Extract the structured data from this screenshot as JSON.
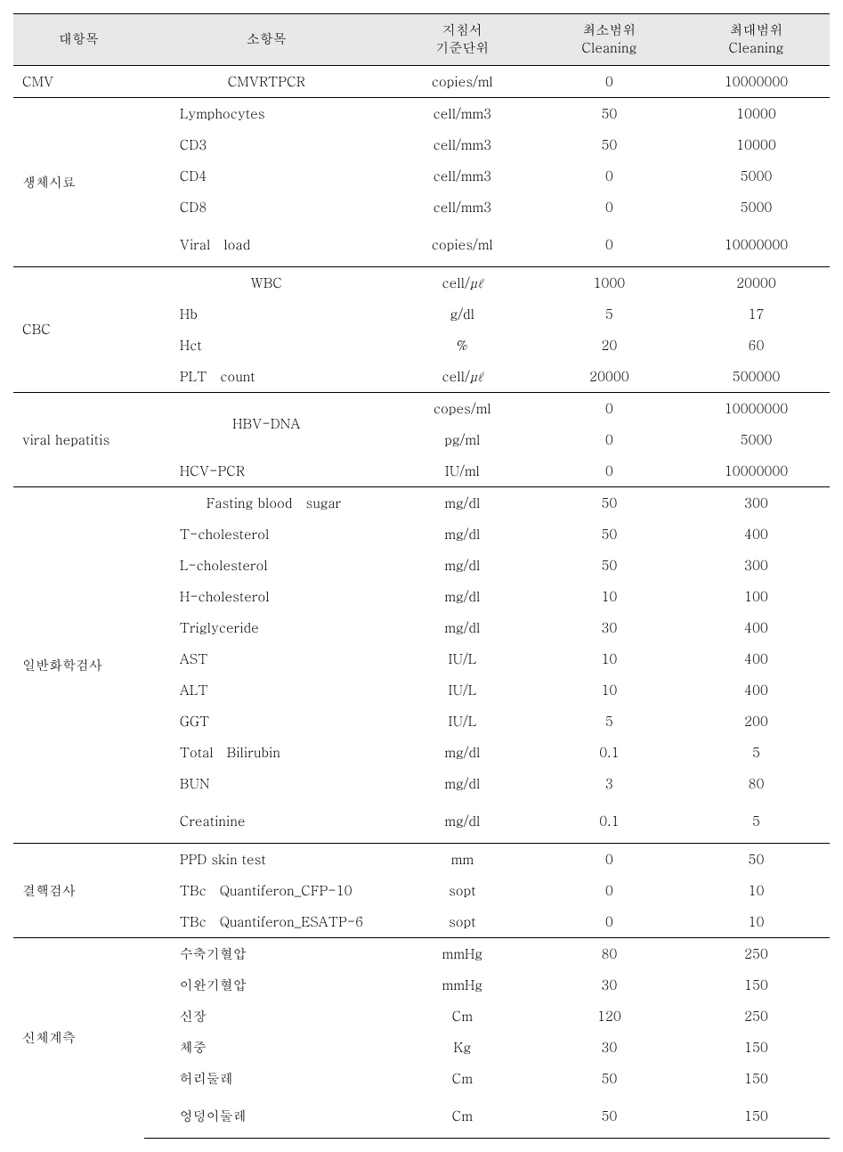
{
  "headers": {
    "h1": "대항목",
    "h2": "소항목",
    "h3a": "지침서",
    "h3b": "기준단위",
    "h4a": "최소범위",
    "h4b": "Cleaning",
    "h5a": "최대범위",
    "h5b": "Cleaning"
  },
  "unit_cell_mm3": "cell/mm3",
  "unit_cell_ul_pre": "cell/",
  "unit_cell_ul_mid": "μℓ",
  "groups": [
    {
      "major": "CMV",
      "rows": [
        {
          "sub": "CMVRTPCR",
          "sub_center": true,
          "unit": "copies/ml",
          "min": "0",
          "max": "10000000"
        }
      ]
    },
    {
      "major": "생체시료",
      "rows": [
        {
          "sub": "Lymphocytes",
          "unit": "cell/mm3",
          "min": "50",
          "max": "10000"
        },
        {
          "sub": "CD3",
          "unit": "cell/mm3",
          "min": "50",
          "max": "10000"
        },
        {
          "sub": "CD4",
          "unit": "cell/mm3",
          "min": "0",
          "max": "5000"
        },
        {
          "sub": "CD8",
          "unit": "cell/mm3",
          "min": "0",
          "max": "5000"
        },
        {
          "sub": "Viral   load",
          "unit": "copies/ml",
          "min": "0",
          "max": "10000000",
          "pad_extra": true
        }
      ]
    },
    {
      "major": "CBC",
      "rows": [
        {
          "sub": "WBC",
          "sub_center": true,
          "unit_ul": true,
          "min": "1000",
          "max": "20000"
        },
        {
          "sub": "Hb",
          "unit": "g/dl",
          "min": "5",
          "max": "17"
        },
        {
          "sub": "Hct",
          "unit": "%",
          "min": "20",
          "max": "60"
        },
        {
          "sub": "PLT   count",
          "unit_ul": true,
          "min": "20000",
          "max": "500000"
        }
      ]
    },
    {
      "major": "viral hepatitis",
      "rows": [
        {
          "sub_span2": "HBV-DNA",
          "sub_center": true,
          "unit": "copes/ml",
          "min": "0",
          "max": "10000000"
        },
        {
          "unit": "pg/ml",
          "min": "0",
          "max": "5000"
        },
        {
          "sub": "HCV-PCR",
          "unit": "IU/ml",
          "min": "0",
          "max": "10000000"
        }
      ]
    },
    {
      "major": "일반화학검사",
      "rows": [
        {
          "sub": "Fasting blood   sugar",
          "sub_center_ish": true,
          "unit": "mg/dl",
          "min": "50",
          "max": "300"
        },
        {
          "sub": "T-cholesterol",
          "unit": "mg/dl",
          "min": "50",
          "max": "400"
        },
        {
          "sub": "L-cholesterol",
          "unit": "mg/dl",
          "min": "50",
          "max": "300"
        },
        {
          "sub": "H-cholesterol",
          "unit": "mg/dl",
          "min": "10",
          "max": "100"
        },
        {
          "sub": "Triglyceride",
          "unit": "mg/dl",
          "min": "30",
          "max": "400"
        },
        {
          "sub": "AST",
          "unit": "IU/L",
          "min": "10",
          "max": "400"
        },
        {
          "sub": "ALT",
          "unit": "IU/L",
          "min": "10",
          "max": "400"
        },
        {
          "sub": "GGT",
          "unit": "IU/L",
          "min": "5",
          "max": "200"
        },
        {
          "sub": "Total   Bilirubin",
          "unit": "mg/dl",
          "min": "0.1",
          "max": "5"
        },
        {
          "sub": "BUN",
          "unit": "mg/dl",
          "min": "3",
          "max": "80"
        },
        {
          "sub": "Creatinine",
          "unit": "mg/dl",
          "min": "0.1",
          "max": "5",
          "pad_extra": true
        }
      ]
    },
    {
      "major": "결핵검사",
      "rows": [
        {
          "sub": "PPD skin test",
          "unit": "mm",
          "min": "0",
          "max": "50"
        },
        {
          "sub": "TBc   Quantiferon_CFP-10",
          "unit": "sopt",
          "min": "0",
          "max": "10"
        },
        {
          "sub": "TBc   Quantiferon_ESATP-6",
          "unit": "sopt",
          "min": "0",
          "max": "10"
        }
      ]
    },
    {
      "major": "신체계측",
      "rows": [
        {
          "sub": "수축기혈압",
          "unit": "mmHg",
          "min": "80",
          "max": "250"
        },
        {
          "sub": "이완기혈압",
          "unit": "mmHg",
          "min": "30",
          "max": "150"
        },
        {
          "sub": "신장",
          "unit": "Cm",
          "min": "120",
          "max": "250"
        },
        {
          "sub": "체중",
          "unit": "Kg",
          "min": "30",
          "max": "150"
        },
        {
          "sub": "허리둘레",
          "unit": "Cm",
          "min": "50",
          "max": "150"
        },
        {
          "sub": "엉덩이둘레",
          "unit": "Cm",
          "min": "50",
          "max": "150",
          "pad_extra": true
        }
      ]
    }
  ]
}
